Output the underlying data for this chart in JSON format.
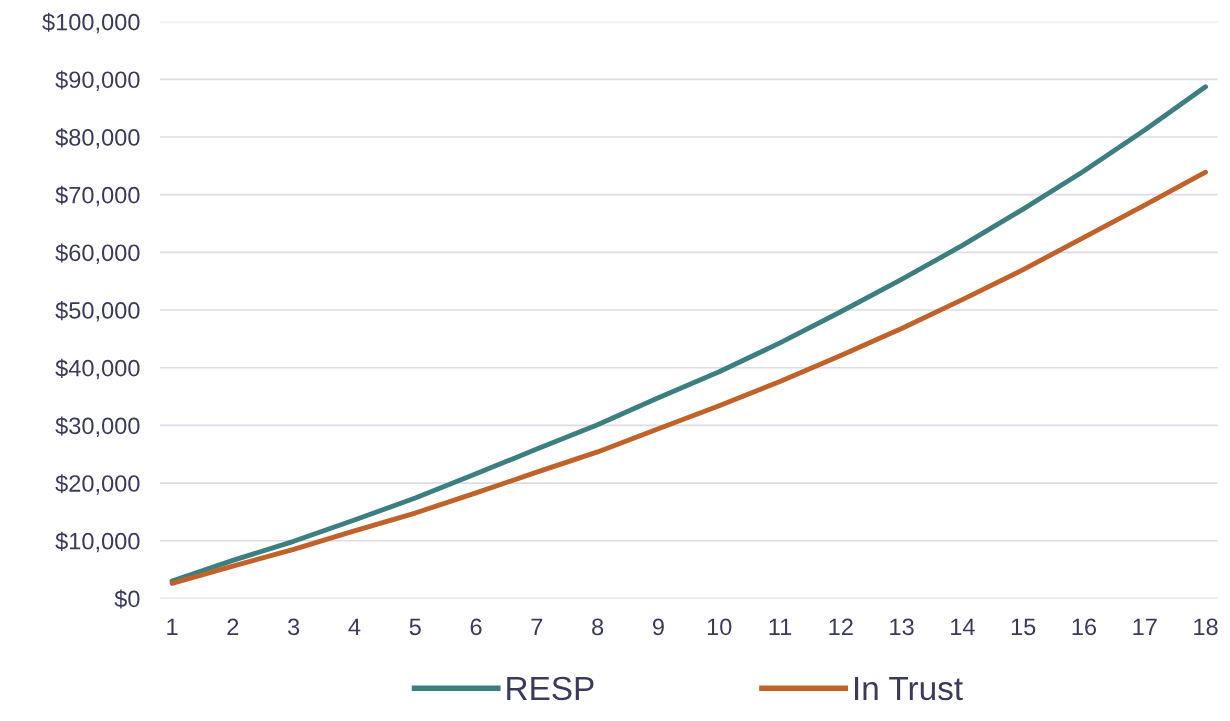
{
  "chart_data": {
    "type": "line",
    "categories": [
      "1",
      "2",
      "3",
      "4",
      "5",
      "6",
      "7",
      "8",
      "9",
      "10",
      "11",
      "12",
      "13",
      "14",
      "15",
      "16",
      "17",
      "18"
    ],
    "series": [
      {
        "name": "RESP",
        "color": "#3d7f80",
        "values": [
          3000,
          6600,
          9900,
          13600,
          17400,
          21600,
          25900,
          30100,
          34800,
          39300,
          44300,
          49700,
          55300,
          61200,
          67500,
          74100,
          81200,
          88700
        ]
      },
      {
        "name": "In Trust",
        "color": "#c0622a",
        "values": [
          2600,
          5600,
          8500,
          11700,
          14800,
          18300,
          21900,
          25400,
          29400,
          33400,
          37600,
          42100,
          46800,
          51800,
          57000,
          62600,
          68200,
          73900
        ]
      }
    ],
    "ylim": [
      0,
      100000
    ],
    "yticks": [
      {
        "value": 0,
        "label": "$0"
      },
      {
        "value": 10000,
        "label": "$10,000"
      },
      {
        "value": 20000,
        "label": "$20,000"
      },
      {
        "value": 30000,
        "label": "$30,000"
      },
      {
        "value": 40000,
        "label": "$40,000"
      },
      {
        "value": 50000,
        "label": "$50,000"
      },
      {
        "value": 60000,
        "label": "$60,000"
      },
      {
        "value": 70000,
        "label": "$70,000"
      },
      {
        "value": 80000,
        "label": "$80,000"
      },
      {
        "value": 90000,
        "label": "$90,000"
      },
      {
        "value": 100000,
        "label": "$100,000"
      }
    ],
    "grid": "y",
    "legend": "bottom",
    "marker": "none",
    "line_style": "solid"
  }
}
